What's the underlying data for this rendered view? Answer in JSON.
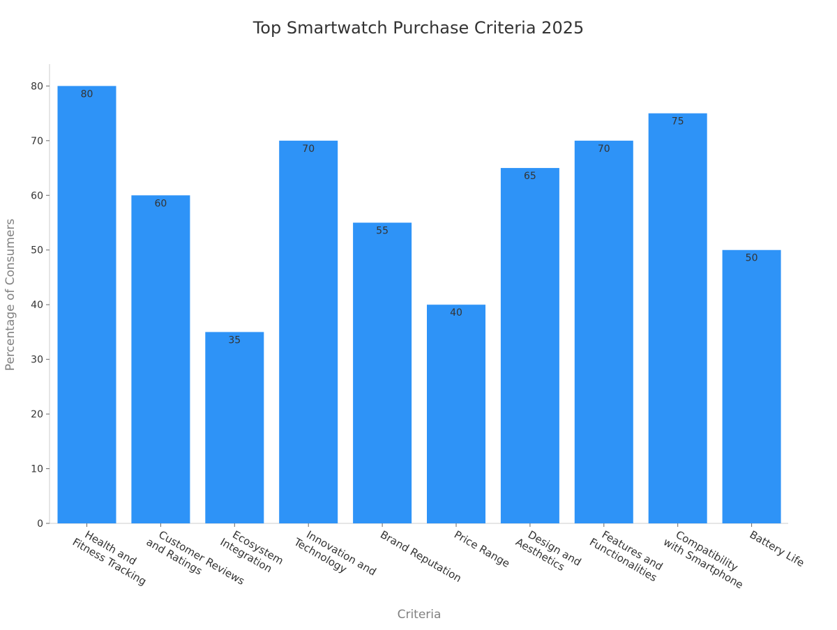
{
  "chart_data": {
    "type": "bar",
    "title": "Top Smartwatch Purchase Criteria 2025",
    "xlabel": "Criteria",
    "ylabel": "Percentage of Consumers",
    "categories": [
      "Health and Fitness Tracking",
      "Customer Reviews and Ratings",
      "Ecosystem Integration",
      "Innovation and Technology",
      "Brand Reputation",
      "Price Range",
      "Design and Aesthetics",
      "Features and Functionalities",
      "Compatibility with Smartphone",
      "Battery Life"
    ],
    "category_label_lines": [
      [
        "Health and",
        "Fitness Tracking"
      ],
      [
        "Customer Reviews",
        "and Ratings"
      ],
      [
        "Ecosystem",
        "Integration"
      ],
      [
        "Innovation and",
        "Technology"
      ],
      [
        "Brand Reputation"
      ],
      [
        "Price Range"
      ],
      [
        "Design and",
        "Aesthetics"
      ],
      [
        "Features and",
        "Functionalities"
      ],
      [
        "Compatibility",
        "with Smartphone"
      ],
      [
        "Battery Life"
      ]
    ],
    "values": [
      80,
      60,
      35,
      70,
      55,
      40,
      65,
      70,
      75,
      50
    ],
    "ylim": [
      0,
      84
    ],
    "yticks": [
      0,
      10,
      20,
      30,
      40,
      50,
      60,
      70,
      80
    ],
    "grid": false,
    "legend": "none",
    "bar_color": "#2e93f7",
    "data_labels": true
  }
}
